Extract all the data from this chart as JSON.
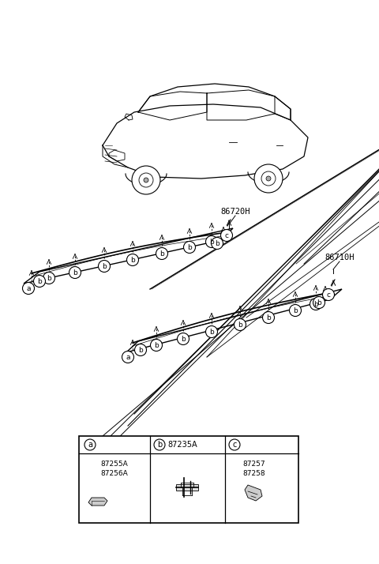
{
  "bg_color": "#ffffff",
  "part_label_86720H": "86720H",
  "part_label_86710H": "86710H",
  "legend_a_parts": [
    "87255A",
    "87256A"
  ],
  "legend_b_part": "87235A",
  "legend_c_parts": [
    "87257",
    "87258"
  ],
  "label_a": "a",
  "label_b": "b",
  "label_c": "c"
}
